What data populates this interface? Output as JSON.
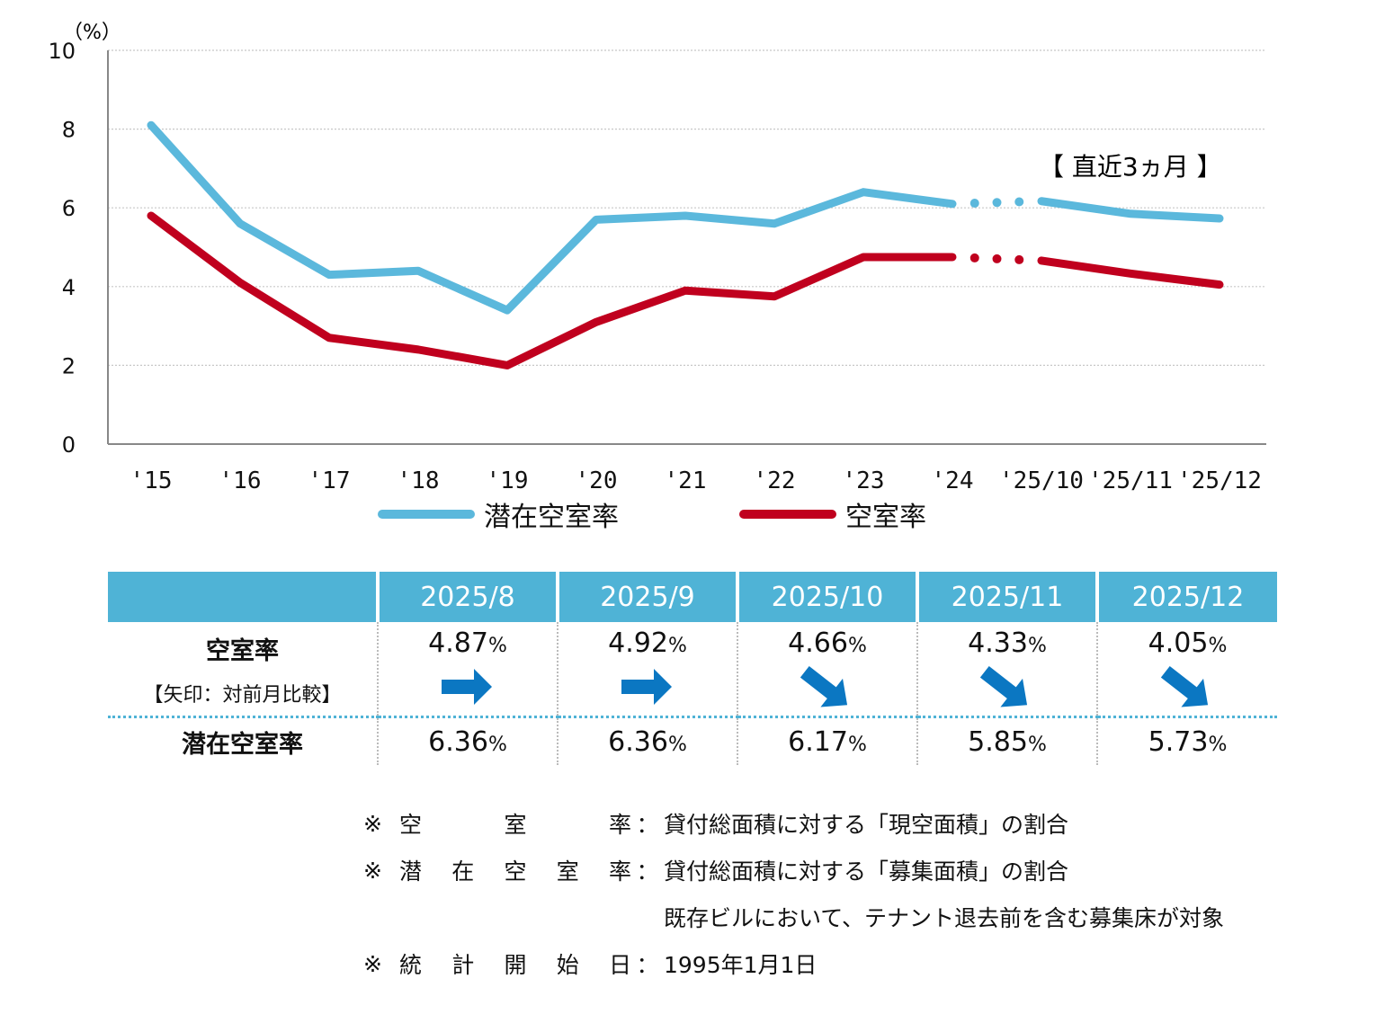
{
  "chart_data": {
    "type": "line",
    "unit_label": "（%）",
    "categories": [
      "'15",
      "'16",
      "'17",
      "'18",
      "'19",
      "'20",
      "'21",
      "'22",
      "'23",
      "'24",
      "'25/10",
      "'25/11",
      "'25/12"
    ],
    "ylim": [
      0,
      10
    ],
    "yticks": [
      "0",
      "2",
      "4",
      "6",
      "8",
      "10"
    ],
    "grid": true,
    "annotation": "【 直近3ヵ月 】",
    "series": [
      {
        "name": "潜在空室率",
        "color": "#5bb8dc",
        "values": [
          8.1,
          5.6,
          4.3,
          4.4,
          3.4,
          5.7,
          5.8,
          5.6,
          6.4,
          6.1,
          6.17,
          5.85,
          5.73
        ]
      },
      {
        "name": "空室率",
        "color": "#c0001e",
        "values": [
          5.8,
          4.1,
          2.7,
          2.4,
          2.0,
          3.1,
          3.9,
          3.75,
          4.75,
          4.75,
          4.66,
          4.33,
          4.05
        ]
      }
    ]
  },
  "table": {
    "headers": [
      "2025/8",
      "2025/9",
      "2025/10",
      "2025/11",
      "2025/12"
    ],
    "vacancy": {
      "label": "空室率",
      "sublabel": "【矢印：対前月比較】",
      "values": [
        "4.87",
        "4.92",
        "4.66",
        "4.33",
        "4.05"
      ],
      "arrows": [
        "right-arrow-icon",
        "right-arrow-icon",
        "down-right-arrow-icon",
        "down-right-arrow-icon",
        "down-right-arrow-icon"
      ]
    },
    "potential": {
      "label": "潜在空室率",
      "values": [
        "6.36",
        "6.36",
        "6.17",
        "5.85",
        "5.73"
      ]
    },
    "pct": "%",
    "arrow_color": "#0b77c2"
  },
  "notes": {
    "mark": "※",
    "colon": "：",
    "vacancy_key": [
      "空",
      "室",
      "率"
    ],
    "vacancy_text": "貸付総面積に対する「現空面積」の割合",
    "potential_key": [
      "潜",
      "在",
      "空",
      "室",
      "率"
    ],
    "potential_text": "貸付総面積に対する「募集面積」の割合",
    "potential_text2": "既存ビルにおいて、テナント退去前を含む募集床が対象",
    "start_key": [
      "統",
      "計",
      "開",
      "始",
      "日"
    ],
    "start_text": "1995年1月1日"
  }
}
